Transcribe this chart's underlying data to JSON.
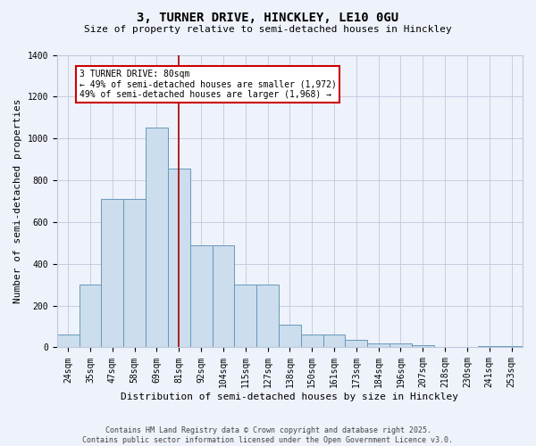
{
  "title1": "3, TURNER DRIVE, HINCKLEY, LE10 0GU",
  "title2": "Size of property relative to semi-detached houses in Hinckley",
  "xlabel": "Distribution of semi-detached houses by size in Hinckley",
  "ylabel": "Number of semi-detached properties",
  "bar_labels": [
    "24sqm",
    "35sqm",
    "47sqm",
    "58sqm",
    "69sqm",
    "81sqm",
    "92sqm",
    "104sqm",
    "115sqm",
    "127sqm",
    "138sqm",
    "150sqm",
    "161sqm",
    "173sqm",
    "184sqm",
    "196sqm",
    "207sqm",
    "218sqm",
    "230sqm",
    "241sqm",
    "253sqm"
  ],
  "bar_values": [
    60,
    300,
    710,
    710,
    1050,
    855,
    490,
    490,
    300,
    300,
    110,
    63,
    63,
    35,
    20,
    20,
    10,
    0,
    0,
    5,
    5
  ],
  "bar_color": "#ccdded",
  "bar_edge_color": "#6699bb",
  "vline_bin_index": 5,
  "vline_color": "#aa0000",
  "annotation_text": "3 TURNER DRIVE: 80sqm\n← 49% of semi-detached houses are smaller (1,972)\n49% of semi-detached houses are larger (1,968) →",
  "annotation_box_facecolor": "#ffffff",
  "annotation_box_edgecolor": "#cc0000",
  "ylim": [
    0,
    1400
  ],
  "yticks": [
    0,
    200,
    400,
    600,
    800,
    1000,
    1200,
    1400
  ],
  "footnote": "Contains HM Land Registry data © Crown copyright and database right 2025.\nContains public sector information licensed under the Open Government Licence v3.0.",
  "bg_color": "#eef2fb",
  "grid_color": "#c0c8dd",
  "title1_fontsize": 10,
  "title2_fontsize": 8,
  "tick_fontsize": 7,
  "ylabel_fontsize": 8,
  "xlabel_fontsize": 8,
  "annot_fontsize": 7,
  "footnote_fontsize": 6
}
